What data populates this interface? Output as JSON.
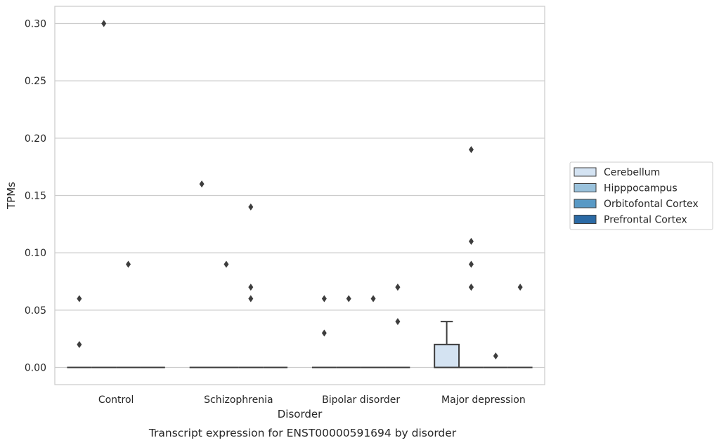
{
  "chart_data": {
    "type": "box",
    "caption": "Transcript expression for ENST00000591694 by disorder",
    "xlabel": "Disorder",
    "ylabel": "TPMs",
    "ylim": [
      -0.015,
      0.315
    ],
    "yticks": [
      0.0,
      0.05,
      0.1,
      0.15,
      0.2,
      0.25,
      0.3
    ],
    "ytick_labels": [
      "0.00",
      "0.05",
      "0.10",
      "0.15",
      "0.20",
      "0.25",
      "0.30"
    ],
    "grid": "horizontal",
    "legend_position": "right",
    "categories": [
      "Control",
      "Schizophrenia",
      "Bipolar disorder",
      "Major depression"
    ],
    "series": [
      {
        "name": "Cerebellum",
        "color": "#d4e3f2",
        "boxes": [
          {
            "q1": 0,
            "median": 0,
            "q3": 0,
            "whisker_low": 0,
            "whisker_high": 0,
            "outliers": [
              0.06,
              0.02
            ]
          },
          {
            "q1": 0,
            "median": 0,
            "q3": 0,
            "whisker_low": 0,
            "whisker_high": 0,
            "outliers": [
              0.16
            ]
          },
          {
            "q1": 0,
            "median": 0,
            "q3": 0,
            "whisker_low": 0,
            "whisker_high": 0,
            "outliers": [
              0.06,
              0.03
            ]
          },
          {
            "q1": 0,
            "median": 0,
            "q3": 0.02,
            "whisker_low": 0,
            "whisker_high": 0.04,
            "outliers": []
          }
        ]
      },
      {
        "name": "Hipppocampus",
        "color": "#9ac2dc",
        "boxes": [
          {
            "q1": 0,
            "median": 0,
            "q3": 0,
            "whisker_low": 0,
            "whisker_high": 0,
            "outliers": [
              0.3
            ]
          },
          {
            "q1": 0,
            "median": 0,
            "q3": 0,
            "whisker_low": 0,
            "whisker_high": 0,
            "outliers": [
              0.09
            ]
          },
          {
            "q1": 0,
            "median": 0,
            "q3": 0,
            "whisker_low": 0,
            "whisker_high": 0,
            "outliers": [
              0.06
            ]
          },
          {
            "q1": 0,
            "median": 0,
            "q3": 0,
            "whisker_low": 0,
            "whisker_high": 0,
            "outliers": [
              0.19,
              0.11,
              0.09,
              0.07,
              0.07
            ]
          }
        ]
      },
      {
        "name": "Orbitofontal Cortex",
        "color": "#5899c5",
        "boxes": [
          {
            "q1": 0,
            "median": 0,
            "q3": 0,
            "whisker_low": 0,
            "whisker_high": 0,
            "outliers": [
              0.09
            ]
          },
          {
            "q1": 0,
            "median": 0,
            "q3": 0,
            "whisker_low": 0,
            "whisker_high": 0,
            "outliers": [
              0.14,
              0.07,
              0.06
            ]
          },
          {
            "q1": 0,
            "median": 0,
            "q3": 0,
            "whisker_low": 0,
            "whisker_high": 0,
            "outliers": [
              0.06
            ]
          },
          {
            "q1": 0,
            "median": 0,
            "q3": 0,
            "whisker_low": 0,
            "whisker_high": 0,
            "outliers": [
              0.01
            ]
          }
        ]
      },
      {
        "name": "Prefrontal Cortex",
        "color": "#2b6aa5",
        "boxes": [
          {
            "q1": 0,
            "median": 0,
            "q3": 0,
            "whisker_low": 0,
            "whisker_high": 0,
            "outliers": []
          },
          {
            "q1": 0,
            "median": 0,
            "q3": 0,
            "whisker_low": 0,
            "whisker_high": 0,
            "outliers": []
          },
          {
            "q1": 0,
            "median": 0,
            "q3": 0,
            "whisker_low": 0,
            "whisker_high": 0,
            "outliers": [
              0.07,
              0.07,
              0.04
            ]
          },
          {
            "q1": 0,
            "median": 0,
            "q3": 0,
            "whisker_low": 0,
            "whisker_high": 0,
            "outliers": [
              0.07
            ]
          }
        ]
      }
    ]
  }
}
